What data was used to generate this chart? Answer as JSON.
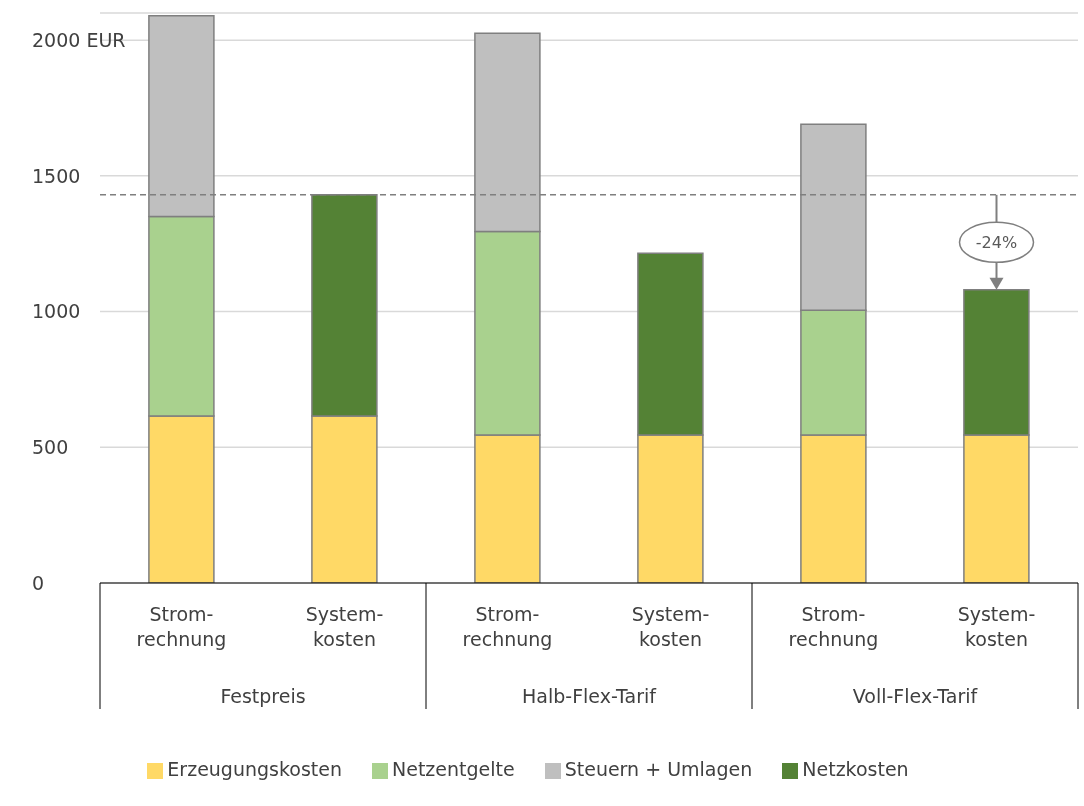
{
  "chart_data": {
    "type": "bar",
    "stacked": true,
    "categories": [
      "Strom-\nrechnung",
      "System-\nkosten",
      "Strom-\nrechnung",
      "System-\nkosten",
      "Strom-\nrechnung",
      "System-\nkosten"
    ],
    "series": [
      {
        "name": "Erzeugungskosten",
        "color": "#ffd966",
        "values": [
          615,
          615,
          545,
          545,
          545,
          545
        ]
      },
      {
        "name": "Netzentgelte",
        "color": "#a9d18e",
        "values": [
          735,
          null,
          750,
          null,
          460,
          null
        ]
      },
      {
        "name": "Steuern + Umlagen",
        "color": "#bfbfbf",
        "values": [
          740,
          null,
          730,
          null,
          685,
          null
        ]
      },
      {
        "name": "Netzkosten",
        "color": "#548235",
        "values": [
          null,
          815,
          null,
          670,
          null,
          535
        ]
      }
    ],
    "ylim": [
      0,
      2100
    ],
    "yticks": [
      0,
      500,
      1000,
      1500,
      {
        "value": 2000,
        "label": "2000  EUR"
      }
    ],
    "grid": "y",
    "legend": "bottom",
    "ref_lines": [
      {
        "axis": "y",
        "value": 1430,
        "color": "#7f7f7f",
        "line_style": "dashed"
      }
    ],
    "annotations": [
      "Festpreis",
      "Halb-Flex-Tarif",
      "Voll-Flex-Tarif",
      {
        "text": "-24%",
        "y": 1080
      }
    ]
  }
}
